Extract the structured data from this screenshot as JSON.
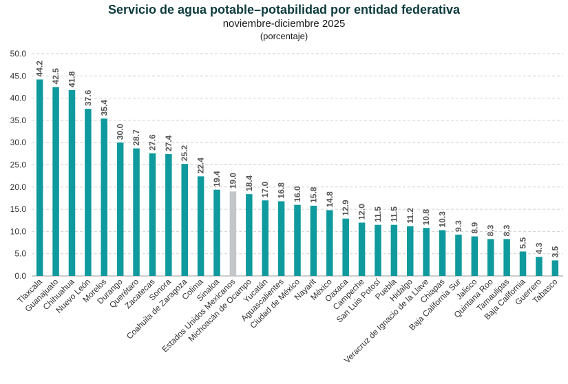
{
  "chart_data": {
    "type": "bar",
    "title": "Servicio de agua potable–potabilidad por entidad federativa",
    "subtitle": "noviembre-diciembre 2025",
    "unit_label": "(porcentaje)",
    "ylim": [
      0,
      50
    ],
    "yticks": [
      "0.0",
      "5.0",
      "10.0",
      "15.0",
      "20.0",
      "25.0",
      "30.0",
      "35.0",
      "40.0",
      "45.0",
      "50.0"
    ],
    "ytick_values": [
      0,
      5,
      10,
      15,
      20,
      25,
      30,
      35,
      40,
      45,
      50
    ],
    "grid": true,
    "colors": {
      "bar": "#0f9a9e",
      "national": "#c3c6c8"
    },
    "highlight_category": "Estados Unidos Mexicanos",
    "categories": [
      "Tlaxcala",
      "Guanajuato",
      "Chihuahua",
      "Nuevo León",
      "Morelos",
      "Durango",
      "Querétaro",
      "Zacatecas",
      "Sonora",
      "Coahuila de Zaragoza",
      "Colima",
      "Sinaloa",
      "Estados Unidos Mexicanos",
      "Michoacán de Ocampo",
      "Yucatán",
      "Aguascalientes",
      "Ciudad de México",
      "Nayarit",
      "México",
      "Oaxaca",
      "Campeche",
      "San Luis Potosí",
      "Puebla",
      "Hidalgo",
      "Veracruz de Ignacio de la Llave",
      "Chiapas",
      "Baja California Sur",
      "Jalisco",
      "Quintana Roo",
      "Tamaulipas",
      "Baja California",
      "Guerrero",
      "Tabasco"
    ],
    "values": [
      44.2,
      42.5,
      41.8,
      37.6,
      35.4,
      30.0,
      28.7,
      27.6,
      27.4,
      25.2,
      22.4,
      19.4,
      19.0,
      18.4,
      17.0,
      16.8,
      16.0,
      15.8,
      14.8,
      12.9,
      12.0,
      11.5,
      11.5,
      11.2,
      10.8,
      10.3,
      9.3,
      8.9,
      8.3,
      8.3,
      5.5,
      4.3,
      3.5
    ],
    "value_labels": [
      "44.2",
      "42.5",
      "41.8",
      "37.6",
      "35.4",
      "30.0",
      "28.7",
      "27.6",
      "27.4",
      "25.2",
      "22.4",
      "19.4",
      "19.0",
      "18.4",
      "17.0",
      "16.8",
      "16.0",
      "15.8",
      "14.8",
      "12.9",
      "12.0",
      "11.5",
      "11.5",
      "11.2",
      "10.8",
      "10.3",
      "9.3",
      "8.9",
      "8.3",
      "8.3",
      "5.5",
      "4.3",
      "3.5"
    ]
  }
}
